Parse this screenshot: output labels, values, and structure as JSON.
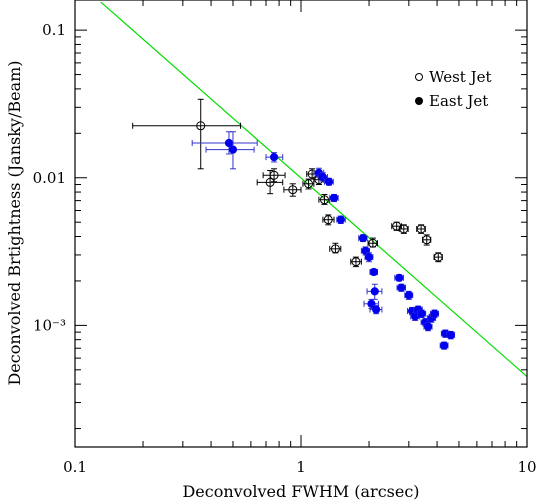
{
  "chart_data": {
    "type": "scatter",
    "title": "",
    "xlabel": "Deconvolved FWHM (arcsec)",
    "ylabel": "Deconvolved Brtightness (Jansky/Beam)",
    "x_scale": "log",
    "y_scale": "log",
    "xlim": [
      0.1,
      10
    ],
    "ylim": [
      0.00015,
      0.16
    ],
    "x_tick_labels": [
      {
        "value": 0.1,
        "label": "0.1"
      },
      {
        "value": 1,
        "label": "1"
      },
      {
        "value": 10,
        "label": "10"
      }
    ],
    "y_tick_labels": [
      {
        "value": 0.1,
        "label": "0.1"
      },
      {
        "value": 0.01,
        "label": "0.01"
      },
      {
        "value": 0.001,
        "label": "10⁻³"
      }
    ],
    "grid": false,
    "legend_position": "top-right",
    "fit_line": {
      "color": "#00dd00",
      "points": [
        [
          0.13,
          0.155
        ],
        [
          10,
          0.00045
        ]
      ]
    },
    "series": [
      {
        "name": "West Jet",
        "marker": "open-circle",
        "color": "#000000",
        "points": [
          {
            "x": 0.36,
            "y": 0.0225,
            "xerr": [
              0.18,
              0.54
            ],
            "yerr": [
              0.0115,
              0.034
            ]
          },
          {
            "x": 0.73,
            "y": 0.0093,
            "xerr": [
              0.64,
              0.83
            ],
            "yerr": [
              0.0078,
              0.0112
            ]
          },
          {
            "x": 0.76,
            "y": 0.0104,
            "xerr": [
              0.68,
              0.85
            ],
            "yerr": [
              0.0094,
              0.0115
            ]
          },
          {
            "x": 0.92,
            "y": 0.0083,
            "xerr": [
              0.84,
              1.0
            ],
            "yerr": [
              0.0075,
              0.0091
            ]
          },
          {
            "x": 1.08,
            "y": 0.0091,
            "xerr": [
              1.02,
              1.14
            ],
            "yerr": [
              0.0084,
              0.0098
            ]
          },
          {
            "x": 1.12,
            "y": 0.0106,
            "xerr": [
              1.06,
              1.19
            ],
            "yerr": [
              0.0098,
              0.0115
            ]
          },
          {
            "x": 1.2,
            "y": 0.0097,
            "xerr": [
              1.14,
              1.26
            ],
            "yerr": [
              0.009,
              0.0104
            ]
          },
          {
            "x": 1.27,
            "y": 0.0071,
            "xerr": [
              1.2,
              1.34
            ],
            "yerr": [
              0.0066,
              0.0077
            ]
          },
          {
            "x": 1.32,
            "y": 0.0052,
            "xerr": [
              1.25,
              1.4
            ],
            "yerr": [
              0.0048,
              0.0056
            ]
          },
          {
            "x": 1.42,
            "y": 0.0033,
            "xerr": [
              1.34,
              1.5
            ],
            "yerr": [
              0.0031,
              0.0036
            ]
          },
          {
            "x": 1.75,
            "y": 0.0027,
            "xerr": [
              1.66,
              1.85
            ],
            "yerr": [
              0.0025,
              0.0029
            ]
          },
          {
            "x": 2.08,
            "y": 0.0036,
            "xerr": [
              1.98,
              2.18
            ],
            "yerr": [
              0.0034,
              0.0039
            ]
          },
          {
            "x": 2.65,
            "y": 0.0047,
            "xerr": [
              2.52,
              2.78
            ],
            "yerr": [
              0.0044,
              0.005
            ]
          },
          {
            "x": 2.85,
            "y": 0.0045,
            "xerr": [
              2.72,
              2.98
            ],
            "yerr": [
              0.0042,
              0.0048
            ]
          },
          {
            "x": 3.4,
            "y": 0.0045,
            "xerr": [
              3.25,
              3.55
            ],
            "yerr": [
              0.0042,
              0.0048
            ]
          },
          {
            "x": 3.6,
            "y": 0.0038,
            "xerr": [
              3.45,
              3.75
            ],
            "yerr": [
              0.0035,
              0.0041
            ]
          },
          {
            "x": 4.05,
            "y": 0.0029,
            "xerr": [
              3.88,
              4.22
            ],
            "yerr": [
              0.0027,
              0.0031
            ]
          }
        ]
      },
      {
        "name": "East Jet",
        "marker": "filled-circle",
        "color": "#0000ee",
        "errorbar_color": "#3333cc",
        "points": [
          {
            "x": 0.48,
            "y": 0.0172,
            "xerr": [
              0.33,
              0.64
            ],
            "yerr": [
              0.0145,
              0.0205
            ]
          },
          {
            "x": 0.5,
            "y": 0.0155,
            "xerr": [
              0.38,
              0.62
            ],
            "yerr": [
              0.0115,
              0.0205
            ]
          },
          {
            "x": 0.76,
            "y": 0.0138,
            "xerr": [
              0.7,
              0.83
            ],
            "yerr": [
              0.0128,
              0.0148
            ]
          },
          {
            "x": 1.2,
            "y": 0.0108,
            "xerr": [
              1.14,
              1.26
            ],
            "yerr": [
              0.0101,
              0.0116
            ]
          },
          {
            "x": 1.25,
            "y": 0.0101,
            "xerr": [
              1.19,
              1.31
            ],
            "yerr": [
              0.0095,
              0.0108
            ]
          },
          {
            "x": 1.33,
            "y": 0.0094,
            "xerr": [
              1.27,
              1.39
            ],
            "yerr": [
              0.0089,
              0.0099
            ]
          },
          {
            "x": 1.4,
            "y": 0.0073,
            "xerr": [
              1.34,
              1.46
            ],
            "yerr": [
              0.0069,
              0.0077
            ]
          },
          {
            "x": 1.5,
            "y": 0.0052,
            "xerr": [
              1.44,
              1.57
            ],
            "yerr": [
              0.0049,
              0.0055
            ]
          },
          {
            "x": 1.88,
            "y": 0.0039,
            "xerr": [
              1.8,
              1.96
            ],
            "yerr": [
              0.0037,
              0.0041
            ]
          },
          {
            "x": 1.93,
            "y": 0.0032,
            "xerr": [
              1.85,
              2.01
            ],
            "yerr": [
              0.003,
              0.0034
            ]
          },
          {
            "x": 2.0,
            "y": 0.0029,
            "xerr": [
              1.92,
              2.08
            ],
            "yerr": [
              0.0027,
              0.0031
            ]
          },
          {
            "x": 2.1,
            "y": 0.0023,
            "xerr": [
              2.02,
              2.18
            ],
            "yerr": [
              0.0022,
              0.0024
            ]
          },
          {
            "x": 2.12,
            "y": 0.0017,
            "xerr": [
              1.96,
              2.28
            ],
            "yerr": [
              0.0015,
              0.0019
            ]
          },
          {
            "x": 2.05,
            "y": 0.0014,
            "xerr": [
              1.9,
              2.2
            ],
            "yerr": [
              0.0013,
              0.0015
            ]
          },
          {
            "x": 2.15,
            "y": 0.00128,
            "xerr": [
              2.02,
              2.28
            ],
            "yerr": [
              0.0012,
              0.00136
            ]
          },
          {
            "x": 2.72,
            "y": 0.0021,
            "xerr": [
              2.6,
              2.84
            ],
            "yerr": [
              0.002,
              0.0022
            ]
          },
          {
            "x": 2.78,
            "y": 0.0018,
            "xerr": [
              2.66,
              2.9
            ],
            "yerr": [
              0.0017,
              0.0019
            ]
          },
          {
            "x": 3.0,
            "y": 0.0016,
            "xerr": [
              2.88,
              3.12
            ],
            "yerr": [
              0.0015,
              0.0017
            ]
          },
          {
            "x": 3.1,
            "y": 0.00125,
            "xerr": [
              2.96,
              3.24
            ],
            "yerr": [
              0.00118,
              0.00132
            ]
          },
          {
            "x": 3.2,
            "y": 0.00115,
            "xerr": [
              3.06,
              3.34
            ],
            "yerr": [
              0.00108,
              0.00122
            ]
          },
          {
            "x": 3.3,
            "y": 0.00128,
            "xerr": [
              3.16,
              3.44
            ],
            "yerr": [
              0.00121,
              0.00135
            ]
          },
          {
            "x": 3.42,
            "y": 0.0012,
            "xerr": [
              3.28,
              3.56
            ],
            "yerr": [
              0.00113,
              0.00127
            ]
          },
          {
            "x": 3.55,
            "y": 0.00105,
            "xerr": [
              3.4,
              3.7
            ],
            "yerr": [
              0.00099,
              0.00111
            ]
          },
          {
            "x": 3.65,
            "y": 0.00098,
            "xerr": [
              3.5,
              3.8
            ],
            "yerr": [
              0.00092,
              0.00104
            ]
          },
          {
            "x": 3.78,
            "y": 0.00112,
            "xerr": [
              3.62,
              3.94
            ],
            "yerr": [
              0.00105,
              0.00119
            ]
          },
          {
            "x": 3.9,
            "y": 0.0012,
            "xerr": [
              3.74,
              4.06
            ],
            "yerr": [
              0.00113,
              0.00127
            ]
          },
          {
            "x": 4.35,
            "y": 0.00088,
            "xerr": [
              4.18,
              4.52
            ],
            "yerr": [
              0.00083,
              0.00093
            ]
          },
          {
            "x": 4.6,
            "y": 0.00086,
            "xerr": [
              4.42,
              4.78
            ],
            "yerr": [
              0.00081,
              0.00091
            ]
          },
          {
            "x": 4.3,
            "y": 0.00073,
            "xerr": [
              4.13,
              4.47
            ],
            "yerr": [
              0.00069,
              0.00077
            ]
          }
        ]
      }
    ]
  }
}
